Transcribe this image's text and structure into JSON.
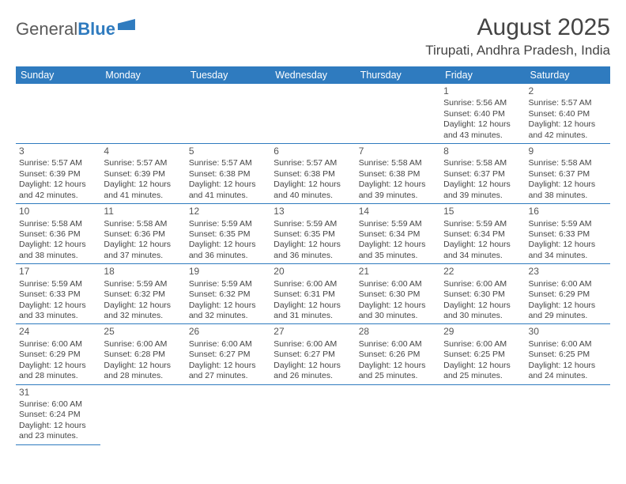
{
  "logo": {
    "part1": "General",
    "part2": "Blue"
  },
  "title": "August 2025",
  "location": "Tirupati, Andhra Pradesh, India",
  "header_color": "#2f7bbf",
  "day_headers": [
    "Sunday",
    "Monday",
    "Tuesday",
    "Wednesday",
    "Thursday",
    "Friday",
    "Saturday"
  ],
  "weeks": [
    [
      null,
      null,
      null,
      null,
      null,
      {
        "n": "1",
        "sr": "Sunrise: 5:56 AM",
        "ss": "Sunset: 6:40 PM",
        "d1": "Daylight: 12 hours",
        "d2": "and 43 minutes."
      },
      {
        "n": "2",
        "sr": "Sunrise: 5:57 AM",
        "ss": "Sunset: 6:40 PM",
        "d1": "Daylight: 12 hours",
        "d2": "and 42 minutes."
      }
    ],
    [
      {
        "n": "3",
        "sr": "Sunrise: 5:57 AM",
        "ss": "Sunset: 6:39 PM",
        "d1": "Daylight: 12 hours",
        "d2": "and 42 minutes."
      },
      {
        "n": "4",
        "sr": "Sunrise: 5:57 AM",
        "ss": "Sunset: 6:39 PM",
        "d1": "Daylight: 12 hours",
        "d2": "and 41 minutes."
      },
      {
        "n": "5",
        "sr": "Sunrise: 5:57 AM",
        "ss": "Sunset: 6:38 PM",
        "d1": "Daylight: 12 hours",
        "d2": "and 41 minutes."
      },
      {
        "n": "6",
        "sr": "Sunrise: 5:57 AM",
        "ss": "Sunset: 6:38 PM",
        "d1": "Daylight: 12 hours",
        "d2": "and 40 minutes."
      },
      {
        "n": "7",
        "sr": "Sunrise: 5:58 AM",
        "ss": "Sunset: 6:38 PM",
        "d1": "Daylight: 12 hours",
        "d2": "and 39 minutes."
      },
      {
        "n": "8",
        "sr": "Sunrise: 5:58 AM",
        "ss": "Sunset: 6:37 PM",
        "d1": "Daylight: 12 hours",
        "d2": "and 39 minutes."
      },
      {
        "n": "9",
        "sr": "Sunrise: 5:58 AM",
        "ss": "Sunset: 6:37 PM",
        "d1": "Daylight: 12 hours",
        "d2": "and 38 minutes."
      }
    ],
    [
      {
        "n": "10",
        "sr": "Sunrise: 5:58 AM",
        "ss": "Sunset: 6:36 PM",
        "d1": "Daylight: 12 hours",
        "d2": "and 38 minutes."
      },
      {
        "n": "11",
        "sr": "Sunrise: 5:58 AM",
        "ss": "Sunset: 6:36 PM",
        "d1": "Daylight: 12 hours",
        "d2": "and 37 minutes."
      },
      {
        "n": "12",
        "sr": "Sunrise: 5:59 AM",
        "ss": "Sunset: 6:35 PM",
        "d1": "Daylight: 12 hours",
        "d2": "and 36 minutes."
      },
      {
        "n": "13",
        "sr": "Sunrise: 5:59 AM",
        "ss": "Sunset: 6:35 PM",
        "d1": "Daylight: 12 hours",
        "d2": "and 36 minutes."
      },
      {
        "n": "14",
        "sr": "Sunrise: 5:59 AM",
        "ss": "Sunset: 6:34 PM",
        "d1": "Daylight: 12 hours",
        "d2": "and 35 minutes."
      },
      {
        "n": "15",
        "sr": "Sunrise: 5:59 AM",
        "ss": "Sunset: 6:34 PM",
        "d1": "Daylight: 12 hours",
        "d2": "and 34 minutes."
      },
      {
        "n": "16",
        "sr": "Sunrise: 5:59 AM",
        "ss": "Sunset: 6:33 PM",
        "d1": "Daylight: 12 hours",
        "d2": "and 34 minutes."
      }
    ],
    [
      {
        "n": "17",
        "sr": "Sunrise: 5:59 AM",
        "ss": "Sunset: 6:33 PM",
        "d1": "Daylight: 12 hours",
        "d2": "and 33 minutes."
      },
      {
        "n": "18",
        "sr": "Sunrise: 5:59 AM",
        "ss": "Sunset: 6:32 PM",
        "d1": "Daylight: 12 hours",
        "d2": "and 32 minutes."
      },
      {
        "n": "19",
        "sr": "Sunrise: 5:59 AM",
        "ss": "Sunset: 6:32 PM",
        "d1": "Daylight: 12 hours",
        "d2": "and 32 minutes."
      },
      {
        "n": "20",
        "sr": "Sunrise: 6:00 AM",
        "ss": "Sunset: 6:31 PM",
        "d1": "Daylight: 12 hours",
        "d2": "and 31 minutes."
      },
      {
        "n": "21",
        "sr": "Sunrise: 6:00 AM",
        "ss": "Sunset: 6:30 PM",
        "d1": "Daylight: 12 hours",
        "d2": "and 30 minutes."
      },
      {
        "n": "22",
        "sr": "Sunrise: 6:00 AM",
        "ss": "Sunset: 6:30 PM",
        "d1": "Daylight: 12 hours",
        "d2": "and 30 minutes."
      },
      {
        "n": "23",
        "sr": "Sunrise: 6:00 AM",
        "ss": "Sunset: 6:29 PM",
        "d1": "Daylight: 12 hours",
        "d2": "and 29 minutes."
      }
    ],
    [
      {
        "n": "24",
        "sr": "Sunrise: 6:00 AM",
        "ss": "Sunset: 6:29 PM",
        "d1": "Daylight: 12 hours",
        "d2": "and 28 minutes."
      },
      {
        "n": "25",
        "sr": "Sunrise: 6:00 AM",
        "ss": "Sunset: 6:28 PM",
        "d1": "Daylight: 12 hours",
        "d2": "and 28 minutes."
      },
      {
        "n": "26",
        "sr": "Sunrise: 6:00 AM",
        "ss": "Sunset: 6:27 PM",
        "d1": "Daylight: 12 hours",
        "d2": "and 27 minutes."
      },
      {
        "n": "27",
        "sr": "Sunrise: 6:00 AM",
        "ss": "Sunset: 6:27 PM",
        "d1": "Daylight: 12 hours",
        "d2": "and 26 minutes."
      },
      {
        "n": "28",
        "sr": "Sunrise: 6:00 AM",
        "ss": "Sunset: 6:26 PM",
        "d1": "Daylight: 12 hours",
        "d2": "and 25 minutes."
      },
      {
        "n": "29",
        "sr": "Sunrise: 6:00 AM",
        "ss": "Sunset: 6:25 PM",
        "d1": "Daylight: 12 hours",
        "d2": "and 25 minutes."
      },
      {
        "n": "30",
        "sr": "Sunrise: 6:00 AM",
        "ss": "Sunset: 6:25 PM",
        "d1": "Daylight: 12 hours",
        "d2": "and 24 minutes."
      }
    ],
    [
      {
        "n": "31",
        "sr": "Sunrise: 6:00 AM",
        "ss": "Sunset: 6:24 PM",
        "d1": "Daylight: 12 hours",
        "d2": "and 23 minutes."
      },
      null,
      null,
      null,
      null,
      null,
      null
    ]
  ]
}
